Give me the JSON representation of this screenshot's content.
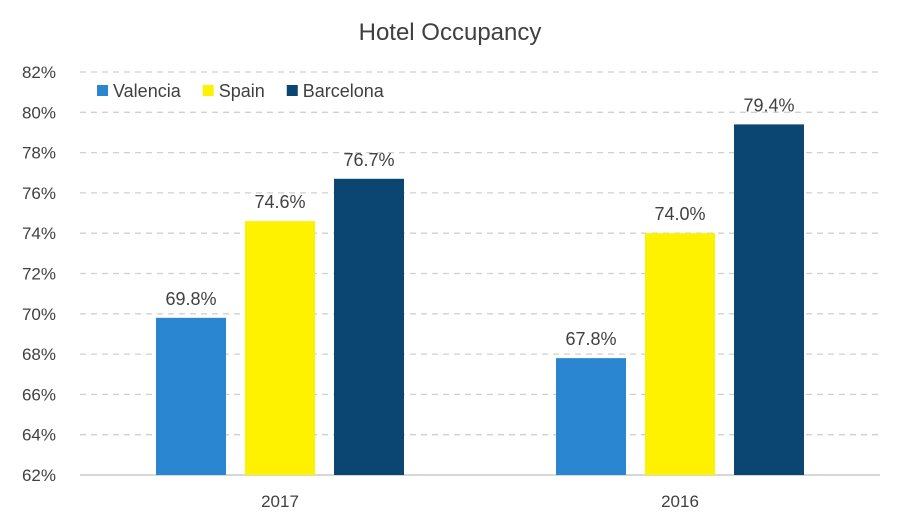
{
  "chart_data": {
    "type": "bar",
    "title": "Hotel Occupancy",
    "categories": [
      "2017",
      "2016"
    ],
    "series": [
      {
        "name": "Valencia",
        "values": [
          69.8,
          67.8
        ],
        "labels": [
          "69.8%",
          "67.8%"
        ],
        "color": "#2b86d1"
      },
      {
        "name": "Spain",
        "values": [
          74.6,
          74.0
        ],
        "labels": [
          "74.6%",
          "74.0%"
        ],
        "color": "#fff200"
      },
      {
        "name": "Barcelona",
        "values": [
          76.7,
          79.4
        ],
        "labels": [
          "76.7%",
          "79.4%"
        ],
        "color": "#0b4571"
      }
    ],
    "ylim": [
      62,
      82
    ],
    "yticks": [
      62,
      64,
      66,
      68,
      70,
      72,
      74,
      76,
      78,
      80,
      82
    ],
    "ytick_labels": [
      "62%",
      "64%",
      "66%",
      "68%",
      "70%",
      "72%",
      "74%",
      "76%",
      "78%",
      "80%",
      "82%"
    ],
    "xlabel": "",
    "ylabel": "",
    "grid": true,
    "legend_position": "top-left"
  }
}
